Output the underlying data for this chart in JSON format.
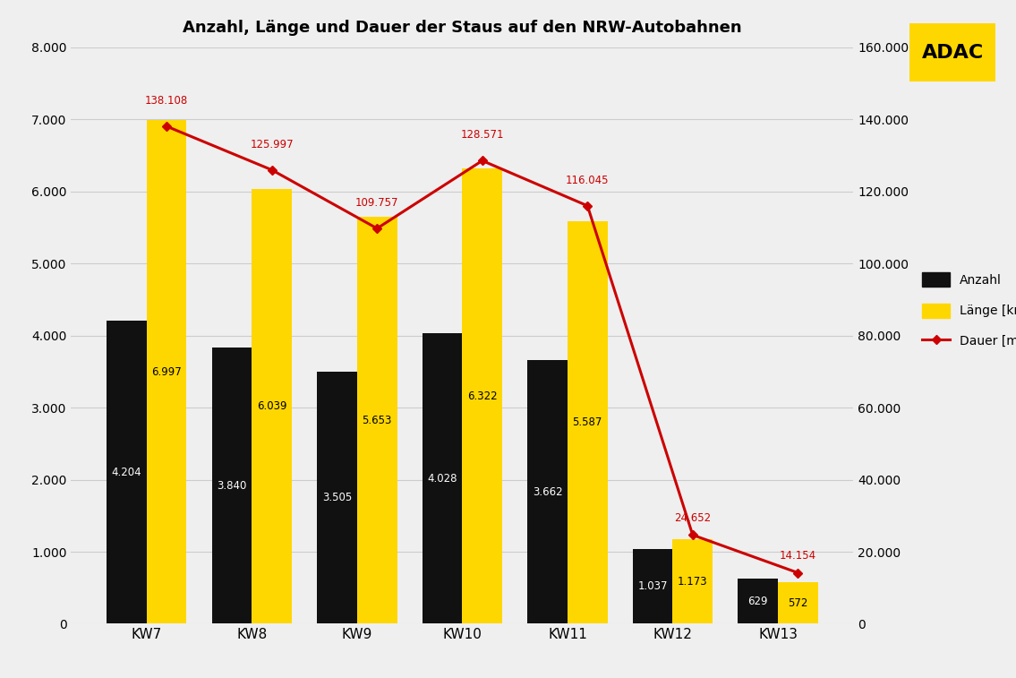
{
  "title": "Anzahl, Länge und Dauer der Staus auf den NRW-Autobahnen",
  "categories": [
    "KW7",
    "KW8",
    "KW9",
    "KW10",
    "KW11",
    "KW12",
    "KW13"
  ],
  "anzahl": [
    4204,
    3840,
    3505,
    4028,
    3662,
    1037,
    629
  ],
  "laenge_scaled": [
    6997,
    6039,
    5653,
    6322,
    5587,
    1173,
    572
  ],
  "dauer": [
    138108,
    125997,
    109757,
    128571,
    116045,
    24652,
    14154
  ],
  "dauer_labels": [
    "138.108",
    "125.997",
    "109.757",
    "128.571",
    "116.045",
    "24.652",
    "14.154"
  ],
  "anzahl_labels": [
    "4.204",
    "3.840",
    "3.505",
    "4.028",
    "3.662",
    "1.037",
    "629"
  ],
  "laenge_labels": [
    "6.997",
    "6.039",
    "5.653",
    "6.322",
    "5.587",
    "1.173",
    "572"
  ],
  "bar_width": 0.38,
  "color_anzahl": "#111111",
  "color_laenge": "#FFD700",
  "color_dauer": "#CC0000",
  "background_color": "#EFEFEF",
  "left_ylim": [
    0,
    8000
  ],
  "right_ylim": [
    0,
    160000
  ],
  "left_yticks": [
    0,
    1000,
    2000,
    3000,
    4000,
    5000,
    6000,
    7000,
    8000
  ],
  "right_yticks": [
    0,
    20000,
    40000,
    60000,
    80000,
    100000,
    120000,
    140000,
    160000
  ],
  "legend_labels": [
    "Anzahl",
    "Länge [km]",
    "Dauer [min]"
  ]
}
